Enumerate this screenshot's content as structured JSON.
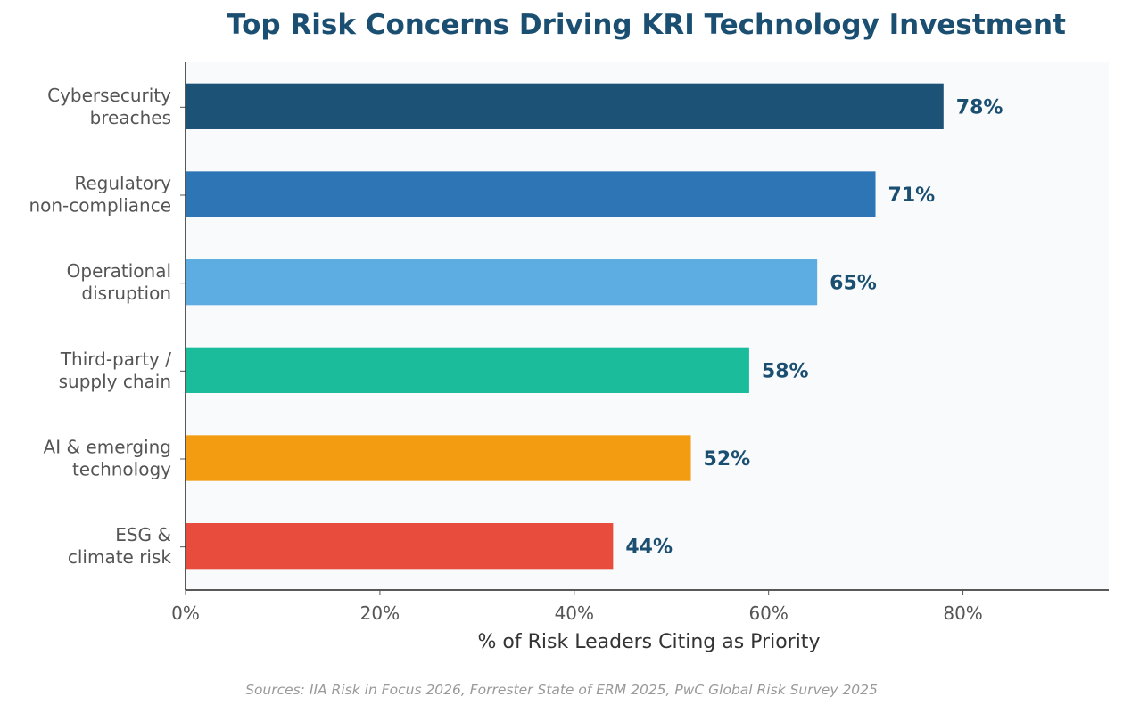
{
  "chart_data": {
    "type": "bar",
    "orientation": "horizontal",
    "title": "Top Risk Concerns Driving KRI Technology Investment",
    "xlabel": "% of Risk Leaders Citing as Priority",
    "ylabel": "",
    "categories": [
      [
        "Cybersecurity",
        "breaches"
      ],
      [
        "Regulatory",
        "non-compliance"
      ],
      [
        "Operational",
        "disruption"
      ],
      [
        "Third-party /",
        "supply chain"
      ],
      [
        "AI & emerging",
        "technology"
      ],
      [
        "ESG &",
        "climate risk"
      ]
    ],
    "values": [
      78,
      71,
      65,
      58,
      52,
      44
    ],
    "value_labels": [
      "78%",
      "71%",
      "65%",
      "58%",
      "52%",
      "44%"
    ],
    "colors": [
      "#1b5276",
      "#2e75b6",
      "#5dade2",
      "#1abc9c",
      "#f39c12",
      "#e74c3c"
    ],
    "xlim": [
      0,
      95
    ],
    "xticks": [
      0,
      20,
      40,
      60,
      80
    ],
    "xtick_labels": [
      "0%",
      "20%",
      "40%",
      "60%",
      "80%"
    ],
    "grid": false,
    "background_color": "#f8fafc"
  },
  "source_note": "Sources: IIA Risk in Focus 2026, Forrester State of ERM 2025, PwC Global Risk Survey 2025"
}
